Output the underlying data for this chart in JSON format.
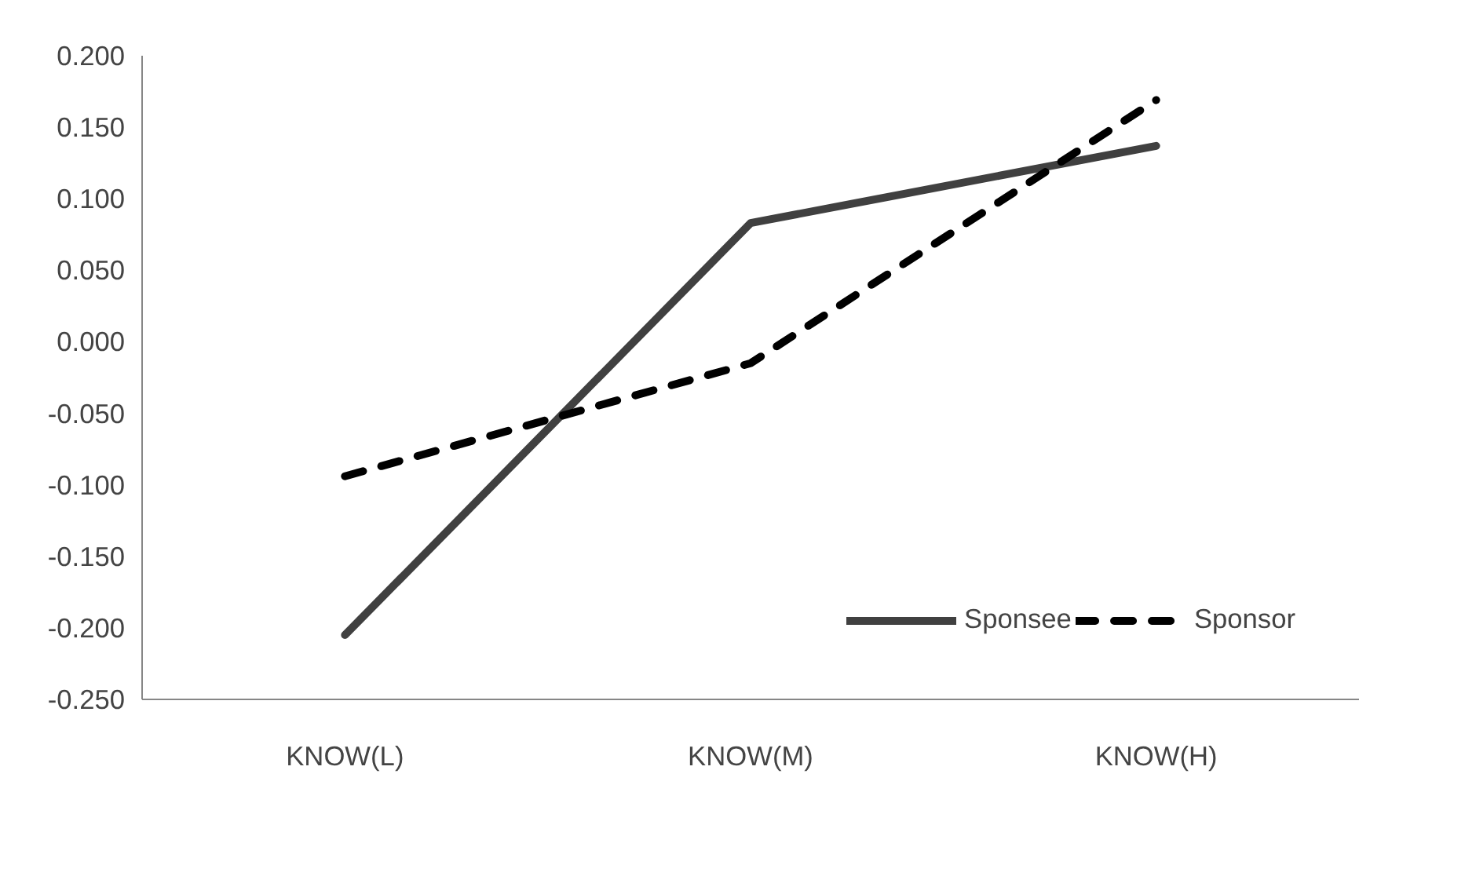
{
  "chart_data": {
    "type": "line",
    "categories": [
      "KNOW(L)",
      "KNOW(M)",
      "KNOW(H)"
    ],
    "series": [
      {
        "name": "Sponsee",
        "color": "#404040",
        "values": [
          -0.205,
          0.083,
          0.137
        ],
        "line_style": "solid"
      },
      {
        "name": "Sponsor",
        "color": "#000000",
        "values": [
          -0.094,
          -0.015,
          0.169
        ],
        "line_style": "dashed"
      }
    ],
    "ylim": [
      -0.25,
      0.2
    ],
    "yticks": [
      {
        "value": 0.2,
        "label": "0.200"
      },
      {
        "value": 0.15,
        "label": "0.150"
      },
      {
        "value": 0.1,
        "label": "0.100"
      },
      {
        "value": 0.05,
        "label": "0.050"
      },
      {
        "value": 0,
        "label": "0.000"
      },
      {
        "value": -0.05,
        "label": "-0.050"
      },
      {
        "value": -0.1,
        "label": "-0.100"
      },
      {
        "value": -0.15,
        "label": "-0.150"
      },
      {
        "value": -0.2,
        "label": "-0.200"
      },
      {
        "value": -0.25,
        "label": "-0.250"
      }
    ],
    "grid": false,
    "legend": "bottom right",
    "marker": "none"
  }
}
